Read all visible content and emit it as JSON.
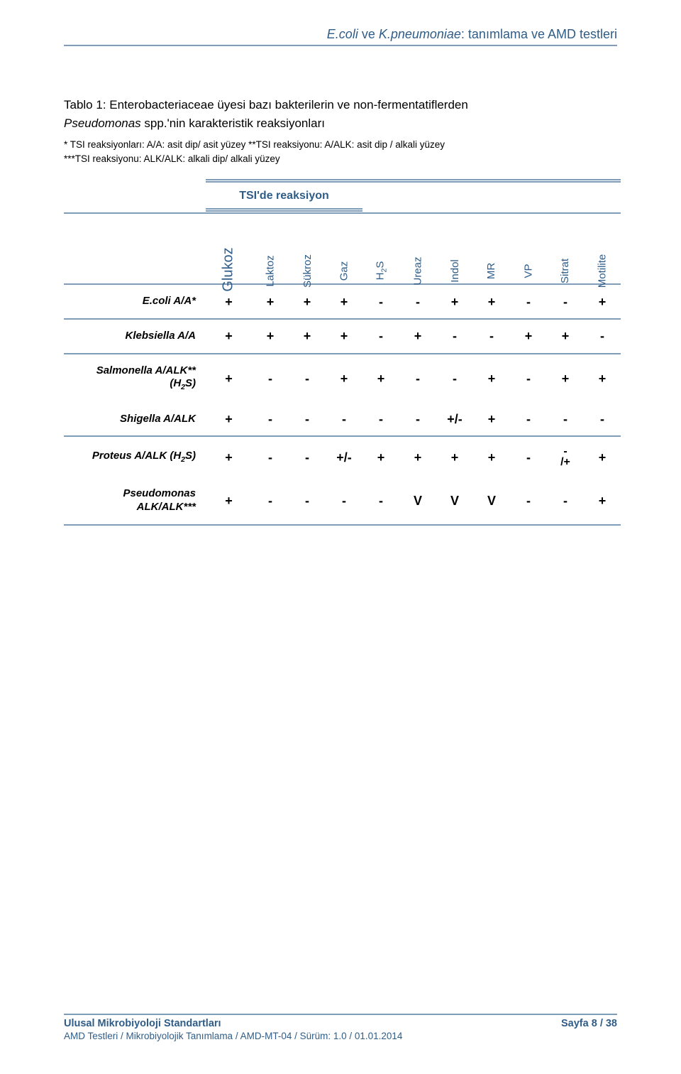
{
  "colors": {
    "header_text": "#2f5d88",
    "header_rule": "#7f9db9",
    "tsi_text": "#2f5d88",
    "tsi_rule": "#7f9db9",
    "colhead_rule": "#7f9db9",
    "colhead_text": "#2f5d88",
    "row_rule": "#7f9db9",
    "footer_text": "#2f5d88",
    "footer_rule": "#7f9db9",
    "body_text": "#000000"
  },
  "header": {
    "title_pre": "E.coli",
    "title_mid": " ve ",
    "title_ital2": "K.pneumoniae",
    "title_post": ": tanımlama ve AMD testleri"
  },
  "body": {
    "line1_pre": "Tablo 1: Enterobacteriaceae üyesi bazı bakterilerin ve non-fermentatiflerden",
    "line2_ital": "Pseudomonas",
    "line2_post": " spp.'nin karakteristik reaksiyonları"
  },
  "footnotes": {
    "l1": "* TSI reaksiyonları: A/A: asit dip/ asit yüzey **TSI reaksiyonu: A/ALK: asit dip / alkali yüzey",
    "l2": "***TSI reaksiyonu: ALK/ALK: alkali dip/ alkali yüzey"
  },
  "table": {
    "tsi_header": "TSI'de reaksiyon",
    "columns": [
      "Glukoz",
      "Laktoz",
      "Sükroz",
      "Gaz",
      "H₂S",
      "Ureaz",
      "Indol",
      "MR",
      "VP",
      "Sitrat",
      "Motilite"
    ],
    "rows": [
      {
        "label_html": "E.coli A/A*",
        "cells": [
          "+",
          "+",
          "+",
          "+",
          "-",
          "-",
          "+",
          "+",
          "-",
          "-",
          "+"
        ]
      },
      {
        "label_html": "Klebsiella A/A",
        "cells": [
          "+",
          "+",
          "+",
          "+",
          "-",
          "+",
          "-",
          "-",
          "+",
          "+",
          "-"
        ]
      },
      {
        "label_html": "Salmonella A/ALK**<br>(H₂S)",
        "cells": [
          "+",
          "-",
          "-",
          "+",
          "+",
          "-",
          "-",
          "+",
          "-",
          "+",
          "+"
        ]
      },
      {
        "label_html": "Shigella A/ALK",
        "cells": [
          "+",
          "-",
          "-",
          "-",
          "-",
          "-",
          "+/-",
          "+",
          "-",
          "-",
          "-"
        ]
      },
      {
        "label_html": "Proteus A/ALK (H₂S)",
        "cells": [
          "+",
          "-",
          "-",
          "+/-",
          "+",
          "+",
          "+",
          "+",
          "-",
          "STACK",
          "+"
        ]
      },
      {
        "label_html": "Pseudomonas<br>ALK/ALK***",
        "cells": [
          "+",
          "-",
          "-",
          "-",
          "-",
          "V",
          "V",
          "V",
          "-",
          "-",
          "+"
        ]
      }
    ],
    "stack_top": "-",
    "stack_bottom": "/+",
    "group_breaks_after": [
      0,
      1,
      3,
      5
    ]
  },
  "footer": {
    "left_bold": "Ulusal Mikrobiyoloji Standartları",
    "right_bold": "Sayfa 8 / 38",
    "sub": "AMD Testleri / Mikrobiyolojik Tanımlama / AMD-MT-04 / Sürüm: 1.0 / 01.01.2014"
  }
}
